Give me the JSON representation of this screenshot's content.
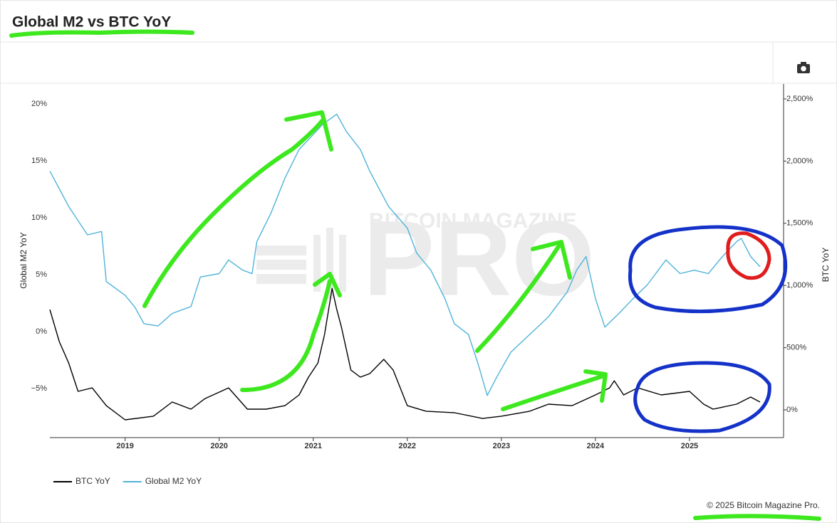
{
  "chart_data": {
    "type": "line",
    "title": "Global M2 vs BTC YoY",
    "ylabel": "Global M2 YoY",
    "y2label": "BTC YoY",
    "watermark": [
      "BITCOIN MAGAZINE",
      "PRO"
    ],
    "credit": "© 2025 Bitcoin Magazine Pro.",
    "xlim": [
      2018.2,
      2026.0
    ],
    "xticks": [
      2019,
      2020,
      2021,
      2022,
      2023,
      2024,
      2025
    ],
    "ylim": [
      -9.3,
      21.75
    ],
    "yticks": [
      {
        "value": -5,
        "label": "−5%"
      },
      {
        "value": 0,
        "label": "0%"
      },
      {
        "value": 5,
        "label": "5%"
      },
      {
        "value": 10,
        "label": "10%"
      },
      {
        "value": 15,
        "label": "15%"
      },
      {
        "value": 20,
        "label": "20%"
      }
    ],
    "y2lim": [
      -223,
      2620
    ],
    "y2ticks": [
      {
        "value": 0,
        "label": "0%"
      },
      {
        "value": 500,
        "label": "500%"
      },
      {
        "value": 1000,
        "label": "1,000%"
      },
      {
        "value": 1500,
        "label": "1,500%"
      },
      {
        "value": 2000,
        "label": "2,000%"
      },
      {
        "value": 2500,
        "label": "2,500%"
      }
    ],
    "grid": false,
    "legend": "bottom-left",
    "series": [
      {
        "name": "BTC YoY",
        "color": "#000000",
        "axis": "y2",
        "x": [
          2018.2,
          2018.3,
          2018.4,
          2018.5,
          2018.65,
          2018.8,
          2019.0,
          2019.3,
          2019.5,
          2019.7,
          2019.85,
          2020.1,
          2020.3,
          2020.5,
          2020.7,
          2020.85,
          2020.95,
          2021.05,
          2021.12,
          2021.2,
          2021.25,
          2021.3,
          2021.4,
          2021.5,
          2021.6,
          2021.75,
          2021.85,
          2022.0,
          2022.2,
          2022.5,
          2022.8,
          2023.0,
          2023.3,
          2023.5,
          2023.75,
          2024.0,
          2024.15,
          2024.2,
          2024.3,
          2024.45,
          2024.7,
          2025.0,
          2025.15,
          2025.25,
          2025.5,
          2025.65,
          2025.75
        ],
        "values": [
          806,
          549,
          377,
          149,
          177,
          34,
          -80,
          -51,
          63,
          6,
          91,
          177,
          6,
          6,
          34,
          120,
          263,
          377,
          606,
          977,
          806,
          663,
          320,
          263,
          291,
          406,
          320,
          34,
          -11,
          -23,
          -69,
          -51,
          -11,
          46,
          34,
          120,
          177,
          234,
          120,
          177,
          120,
          149,
          46,
          6,
          46,
          103,
          63
        ]
      },
      {
        "name": "Global M2 YoY",
        "color": "#4fb3d9",
        "x": [
          2018.2,
          2018.4,
          2018.6,
          2018.75,
          2018.8,
          2019.0,
          2019.1,
          2019.2,
          2019.35,
          2019.5,
          2019.7,
          2019.8,
          2020.0,
          2020.1,
          2020.25,
          2020.35,
          2020.4,
          2020.55,
          2020.7,
          2020.85,
          2021.0,
          2021.1,
          2021.25,
          2021.35,
          2021.5,
          2021.6,
          2021.8,
          2022.0,
          2022.1,
          2022.25,
          2022.4,
          2022.5,
          2022.65,
          2022.75,
          2022.85,
          2022.95,
          2023.1,
          2023.3,
          2023.5,
          2023.7,
          2023.8,
          2023.9,
          2024.0,
          2024.1,
          2024.25,
          2024.4,
          2024.55,
          2024.75,
          2024.9,
          2025.05,
          2025.2,
          2025.35,
          2025.5,
          2025.55,
          2025.65,
          2025.75
        ],
        "values": [
          14.1,
          11,
          8.5,
          8.8,
          4.4,
          3.2,
          2.2,
          0.7,
          0.5,
          1.6,
          2.2,
          4.8,
          5.1,
          6.3,
          5.4,
          5.1,
          7.9,
          10.4,
          13.5,
          16,
          17.3,
          18.2,
          19.1,
          17.6,
          16,
          14.1,
          11,
          9.1,
          6.9,
          5.4,
          2.9,
          0.7,
          -0.25,
          -2.75,
          -5.6,
          -4,
          -1.8,
          -0.25,
          1.3,
          3.5,
          5.4,
          6.6,
          2.9,
          0.4,
          1.6,
          2.9,
          4.1,
          6.3,
          5.1,
          5.4,
          5.1,
          6.6,
          7.9,
          8.2,
          6.6,
          5.7
        ]
      }
    ]
  }
}
